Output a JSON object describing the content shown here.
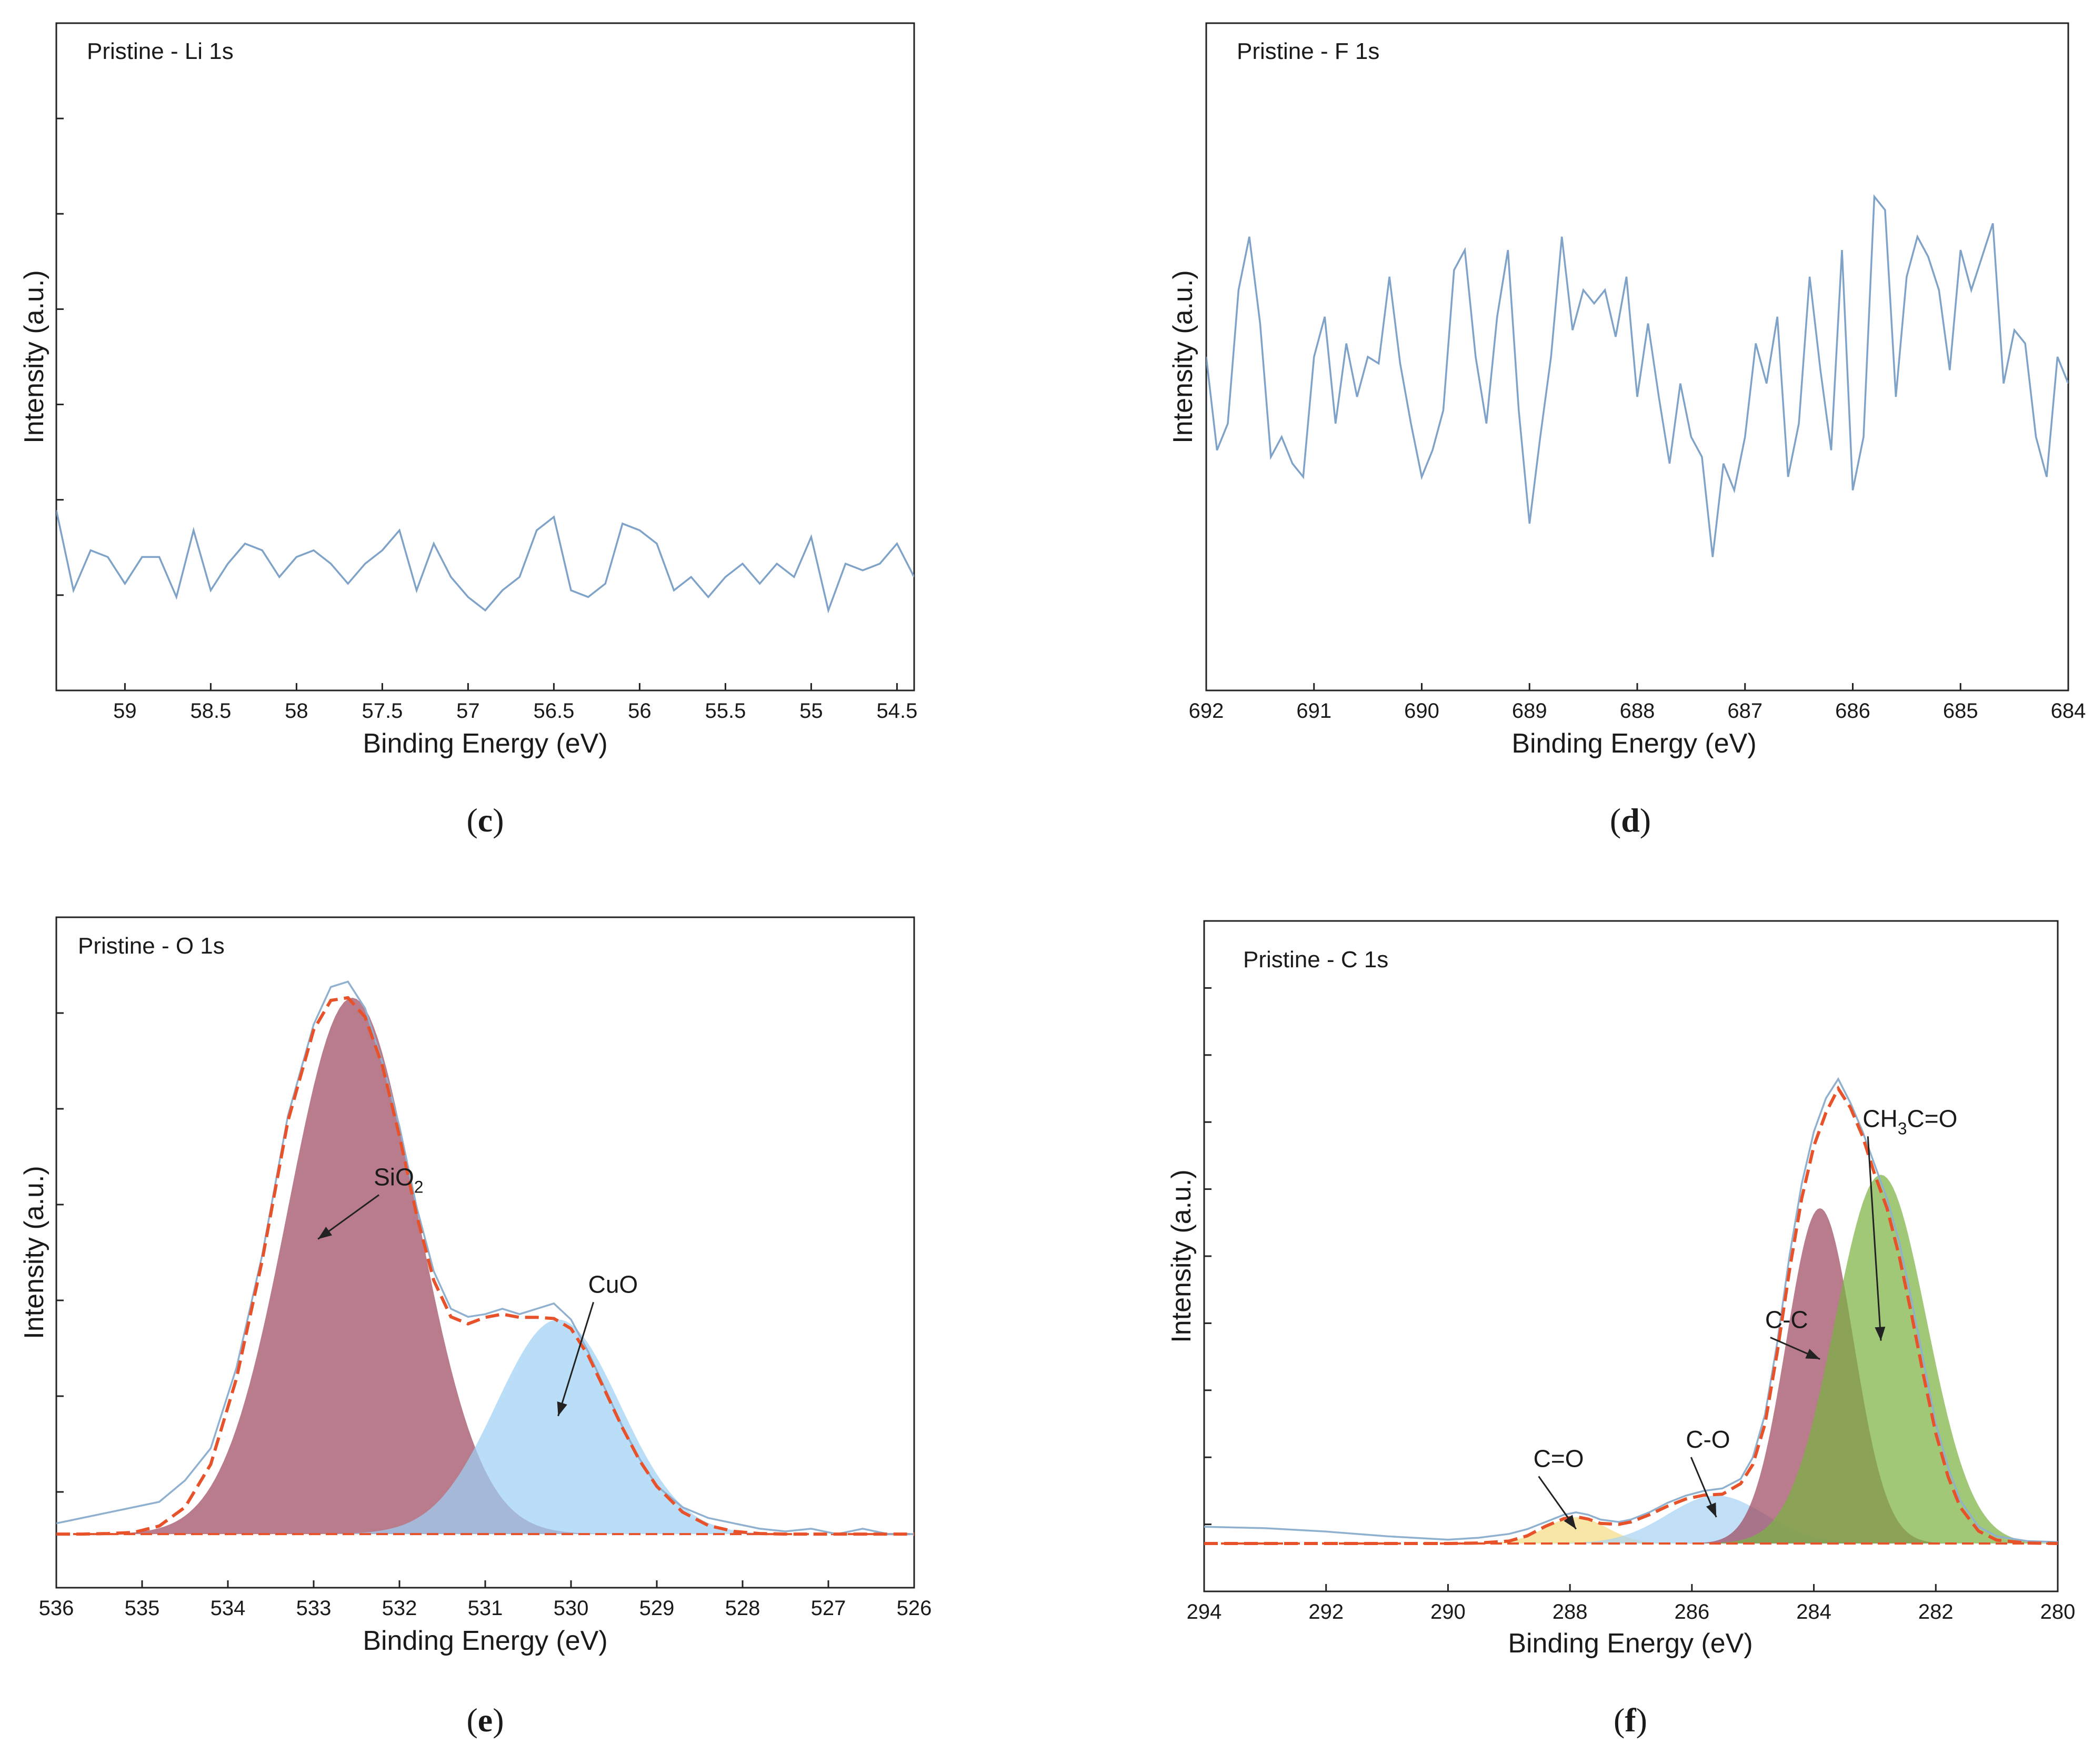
{
  "chart_data": [
    {
      "id": "c",
      "type": "line",
      "caption": "c",
      "title": "Pristine - Li 1s",
      "xlabel": "Binding Energy (eV)",
      "ylabel": "Intensity (a.u.)",
      "xlim": [
        59.4,
        54.4
      ],
      "ylim": [
        0,
        100
      ],
      "xticks": [
        59,
        58.5,
        58,
        57.5,
        57,
        56.5,
        56,
        55.5,
        55,
        54.5
      ],
      "xtick_labels": [
        "59",
        "58.5",
        "58",
        "57.5",
        "57",
        "56.5",
        "56",
        "55.5",
        "55",
        "54.5"
      ],
      "yticks_count": 6,
      "series": [
        {
          "name": "measured",
          "style": "raw",
          "color": "#7fa3c8",
          "x": [
            59.4,
            59.3,
            59.2,
            59.1,
            59.0,
            58.9,
            58.8,
            58.7,
            58.6,
            58.5,
            58.4,
            58.3,
            58.2,
            58.1,
            58.0,
            57.9,
            57.8,
            57.7,
            57.6,
            57.5,
            57.4,
            57.3,
            57.2,
            57.1,
            57.0,
            56.9,
            56.8,
            56.7,
            56.6,
            56.5,
            56.4,
            56.3,
            56.2,
            56.1,
            56.0,
            55.9,
            55.8,
            55.7,
            55.6,
            55.5,
            55.4,
            55.3,
            55.2,
            55.1,
            55.0,
            54.9,
            54.8,
            54.7,
            54.6,
            54.5,
            54.4
          ],
          "y": [
            27,
            15,
            21,
            20,
            16,
            20,
            20,
            14,
            24,
            15,
            19,
            22,
            21,
            17,
            20,
            21,
            19,
            16,
            19,
            21,
            24,
            15,
            22,
            17,
            14,
            12,
            15,
            17,
            24,
            26,
            15,
            14,
            16,
            25,
            24,
            22,
            15,
            17,
            14,
            17,
            19,
            16,
            19,
            17,
            23,
            12,
            19,
            18,
            19,
            22,
            17
          ]
        }
      ]
    },
    {
      "id": "d",
      "type": "line",
      "caption": "d",
      "title": "Pristine - F 1s",
      "xlabel": "Binding Energy (eV)",
      "ylabel": "Intensity (a.u.)",
      "xlim": [
        692,
        684
      ],
      "ylim": [
        0,
        100
      ],
      "xticks": [
        692,
        691,
        690,
        689,
        688,
        687,
        686,
        685,
        684
      ],
      "xtick_labels": [
        "692",
        "691",
        "690",
        "689",
        "688",
        "687",
        "686",
        "685",
        "684"
      ],
      "yticks_count": 0,
      "series": [
        {
          "name": "measured",
          "style": "raw",
          "color": "#7fa3c8",
          "x": [
            692.0,
            691.9,
            691.8,
            691.7,
            691.6,
            691.5,
            691.4,
            691.3,
            691.2,
            691.1,
            691.0,
            690.9,
            690.8,
            690.7,
            690.6,
            690.5,
            690.4,
            690.3,
            690.2,
            690.1,
            690.0,
            689.9,
            689.8,
            689.7,
            689.6,
            689.5,
            689.4,
            689.3,
            689.2,
            689.1,
            689.0,
            688.9,
            688.8,
            688.7,
            688.6,
            688.5,
            688.4,
            688.3,
            688.2,
            688.1,
            688.0,
            687.9,
            687.8,
            687.7,
            687.6,
            687.5,
            687.4,
            687.3,
            687.2,
            687.1,
            687.0,
            686.9,
            686.8,
            686.7,
            686.6,
            686.5,
            686.4,
            686.3,
            686.2,
            686.1,
            686.0,
            685.9,
            685.8,
            685.7,
            685.6,
            685.5,
            685.4,
            685.3,
            685.2,
            685.1,
            685.0,
            684.9,
            684.8,
            684.7,
            684.6,
            684.5,
            684.4,
            684.3,
            684.2,
            684.1,
            684.0
          ],
          "y": [
            50,
            36,
            40,
            60,
            68,
            55,
            35,
            38,
            34,
            32,
            50,
            56,
            40,
            52,
            44,
            50,
            49,
            62,
            49,
            40,
            32,
            36,
            42,
            63,
            66,
            50,
            40,
            56,
            66,
            42,
            25,
            38,
            50,
            68,
            54,
            60,
            58,
            60,
            53,
            62,
            44,
            55,
            44,
            34,
            46,
            38,
            35,
            20,
            34,
            30,
            38,
            52,
            46,
            56,
            32,
            40,
            62,
            48,
            36,
            66,
            30,
            38,
            74,
            72,
            44,
            62,
            68,
            65,
            60,
            48,
            66,
            60,
            65,
            70,
            46,
            54,
            52,
            38,
            32,
            50,
            46
          ]
        }
      ]
    },
    {
      "id": "e",
      "type": "area",
      "caption": "e",
      "title": "Pristine - O 1s",
      "xlabel": "Binding Energy (eV)",
      "ylabel": "Intensity (a.u.)",
      "xlim": [
        536,
        526
      ],
      "ylim": [
        -10,
        115
      ],
      "xticks": [
        536,
        535,
        534,
        533,
        532,
        531,
        530,
        529,
        528,
        527,
        526
      ],
      "xtick_labels": [
        "536",
        "535",
        "534",
        "533",
        "532",
        "531",
        "530",
        "529",
        "528",
        "527",
        "526"
      ],
      "yticks_count": 6,
      "baseline": 0,
      "components": [
        {
          "name": "SiO2",
          "center": 532.55,
          "amplitude": 100,
          "sigma": 0.75,
          "color": "#9c4a60"
        },
        {
          "name": "CuO",
          "center": 530.15,
          "amplitude": 40,
          "sigma": 0.72,
          "color": "#9fd0f5"
        }
      ],
      "series": [
        {
          "name": "envelope",
          "style": "fit",
          "color": "#e8522a",
          "x": [
            536.0,
            535.7,
            535.4,
            535.1,
            534.8,
            534.5,
            534.2,
            533.9,
            533.6,
            533.3,
            533.0,
            532.8,
            532.6,
            532.4,
            532.2,
            532.0,
            531.8,
            531.6,
            531.4,
            531.2,
            531.0,
            530.8,
            530.6,
            530.4,
            530.2,
            530.0,
            529.8,
            529.6,
            529.4,
            529.2,
            529.0,
            528.7,
            528.4,
            528.1,
            527.8,
            527.5,
            527.2,
            526.9,
            526.6,
            526.3,
            526.0
          ],
          "y": [
            0,
            0,
            0.1,
            0.3,
            1.5,
            5,
            13,
            29,
            51,
            77,
            94,
            99.5,
            100,
            96.4,
            87.4,
            74.2,
            59.5,
            47.3,
            40.5,
            39.2,
            40.4,
            41,
            40.4,
            40.4,
            40.2,
            38.3,
            33.3,
            26.6,
            19.8,
            13.7,
            8.9,
            4.1,
            1.6,
            0.5,
            0.1,
            0,
            0,
            0,
            0,
            0,
            0
          ]
        },
        {
          "name": "measured",
          "style": "raw",
          "color": "#8fb0cf",
          "x": [
            536.0,
            535.7,
            535.4,
            535.1,
            534.8,
            534.5,
            534.2,
            533.9,
            533.6,
            533.3,
            533.0,
            532.8,
            532.6,
            532.4,
            532.2,
            532.0,
            531.8,
            531.6,
            531.4,
            531.2,
            531.0,
            530.8,
            530.6,
            530.4,
            530.2,
            530.0,
            529.8,
            529.6,
            529.4,
            529.2,
            529.0,
            528.7,
            528.4,
            528.1,
            527.8,
            527.5,
            527.2,
            526.9,
            526.6,
            526.3,
            526.0
          ],
          "y": [
            2,
            3,
            4,
            5,
            6,
            10,
            16,
            31,
            52,
            78,
            95,
            102,
            103,
            98,
            88,
            76,
            61,
            49,
            42,
            40.5,
            41,
            42,
            41,
            42,
            43,
            40,
            34,
            27,
            20,
            14,
            9,
            5,
            3,
            2,
            1,
            0.5,
            1,
            0,
            1,
            0,
            0
          ]
        }
      ],
      "annotations": [
        {
          "label": "SiO",
          "subscript": "2",
          "x": 532.3,
          "y": 65
        },
        {
          "label": "CuO",
          "x": 529.8,
          "y": 45
        }
      ]
    },
    {
      "id": "f",
      "type": "area",
      "caption": "f",
      "title": "Pristine - C 1s",
      "xlabel": "Binding Energy (eV)",
      "ylabel": "Intensity (a.u.)",
      "xlim": [
        294,
        280
      ],
      "ylim": [
        -10,
        130
      ],
      "xticks": [
        294,
        292,
        290,
        288,
        286,
        284,
        282,
        280
      ],
      "xtick_labels": [
        "294",
        "292",
        "290",
        "288",
        "286",
        "284",
        "282",
        "280"
      ],
      "yticks_count": 9,
      "baseline": 0,
      "components": [
        {
          "name": "C=O",
          "center": 287.9,
          "amplitude": 5.5,
          "sigma": 0.5,
          "color": "#f5dc84"
        },
        {
          "name": "C-O",
          "center": 285.6,
          "amplitude": 10,
          "sigma": 0.8,
          "color": "#a9d4f5"
        },
        {
          "name": "C-C",
          "center": 283.9,
          "amplitude": 70,
          "sigma": 0.55,
          "color": "#9c4a60"
        },
        {
          "name": "CH3C=O",
          "center": 282.9,
          "amplitude": 77,
          "sigma": 0.75,
          "color": "#7cb342"
        }
      ],
      "series": [
        {
          "name": "envelope",
          "style": "fit",
          "color": "#e8522a",
          "x": [
            294.0,
            293.0,
            292.0,
            291.0,
            290.0,
            289.5,
            289.0,
            288.7,
            288.4,
            288.1,
            287.9,
            287.7,
            287.5,
            287.2,
            287.0,
            286.7,
            286.4,
            286.1,
            285.8,
            285.5,
            285.2,
            285.0,
            284.8,
            284.6,
            284.4,
            284.2,
            284.0,
            283.8,
            283.6,
            283.4,
            283.2,
            283.0,
            282.8,
            282.6,
            282.4,
            282.2,
            282.0,
            281.8,
            281.6,
            281.3,
            281.0,
            280.5,
            280.0
          ],
          "y": [
            0,
            0,
            0,
            0,
            0,
            0.1,
            0.5,
            1.6,
            3.6,
            5.2,
            5.6,
            5.1,
            4.2,
            4.0,
            4.5,
            6.0,
            7.8,
            9.3,
            10.1,
            10.3,
            12.5,
            16.5,
            25,
            40,
            57,
            72,
            83,
            90,
            95,
            91,
            85,
            77,
            70,
            60,
            48,
            35,
            23,
            14,
            7.6,
            2.6,
            0.7,
            0.1,
            0
          ]
        },
        {
          "name": "measured",
          "style": "raw",
          "color": "#8fb0cf",
          "x": [
            294.0,
            293.0,
            292.0,
            291.0,
            290.0,
            289.5,
            289.0,
            288.7,
            288.4,
            288.1,
            287.9,
            287.7,
            287.5,
            287.2,
            287.0,
            286.7,
            286.4,
            286.1,
            285.8,
            285.5,
            285.2,
            285.0,
            284.8,
            284.6,
            284.4,
            284.2,
            284.0,
            283.8,
            283.6,
            283.4,
            283.2,
            283.0,
            282.8,
            282.6,
            282.4,
            282.2,
            282.0,
            281.8,
            281.6,
            281.3,
            281.0,
            280.5,
            280.0
          ],
          "y": [
            3.5,
            3.2,
            2.5,
            1.5,
            0.8,
            1.2,
            2,
            3,
            4.5,
            6,
            6.5,
            6,
            5,
            4.5,
            5,
            6.5,
            8.5,
            10,
            11,
            11.5,
            13.5,
            18,
            27,
            42,
            60,
            75,
            86,
            93,
            97,
            92,
            86,
            79,
            72,
            63,
            51,
            38,
            25,
            16,
            9,
            3.5,
            1.5,
            0.5,
            0.3
          ]
        }
      ],
      "annotations": [
        {
          "label": "C=O",
          "x": 288.6,
          "y": 16
        },
        {
          "label": "C-O",
          "x": 286.1,
          "y": 20
        },
        {
          "label": "C-C",
          "x": 284.8,
          "y": 45
        },
        {
          "label": "CH",
          "subscript": "3",
          "label_after": "C=O",
          "x": 283.2,
          "y": 87
        }
      ]
    }
  ]
}
